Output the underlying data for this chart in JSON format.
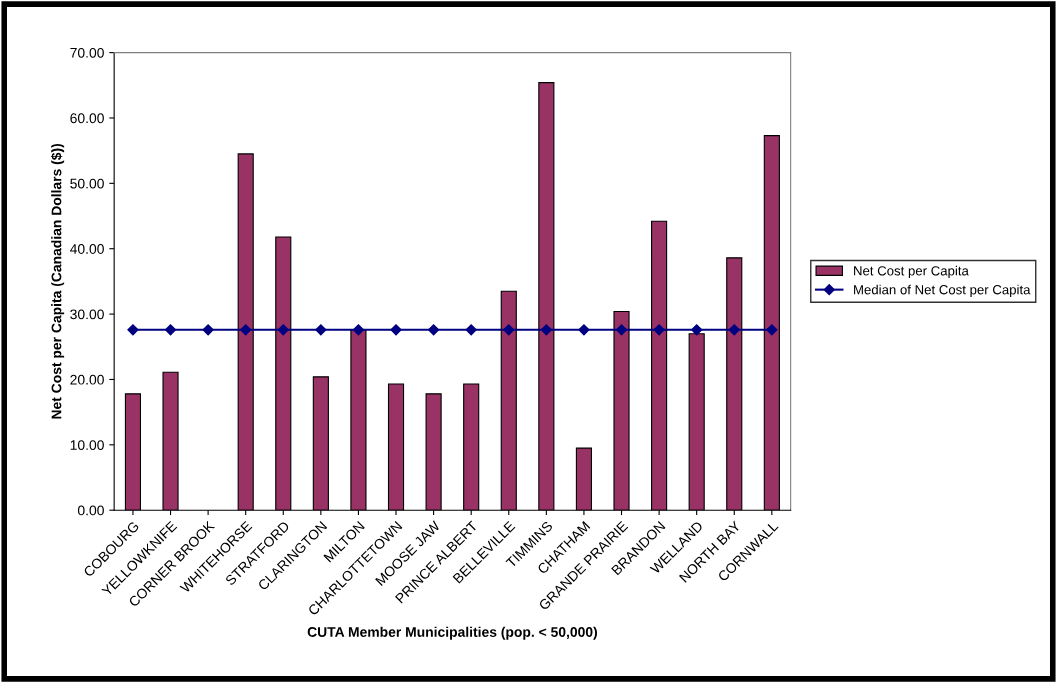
{
  "chart_data": {
    "type": "bar",
    "xlabel": "CUTA Member Municipalities (pop. < 50,000)",
    "ylabel": "Net Cost per Capita (Canadian Dollars ($))",
    "categories": [
      "COBOURG",
      "YELLOWKNIFE",
      "CORNER BROOK",
      "WHITEHORSE",
      "STRATFORD",
      "CLARINGTON",
      "MILTON",
      "CHARLOTTETOWN",
      "MOOSE JAW",
      "PRINCE ALBERT",
      "BELLEVILLE",
      "TIMMINS",
      "CHATHAM",
      "GRANDE PRAIRIE",
      "BRANDON",
      "WELLAND",
      "NORTH BAY",
      "CORNWALL"
    ],
    "series": [
      {
        "name": "Net Cost per Capita",
        "color": "#993366",
        "values": [
          17.8,
          21.1,
          null,
          54.5,
          41.8,
          20.4,
          27.6,
          19.3,
          17.8,
          19.3,
          33.5,
          65.4,
          9.5,
          30.4,
          44.2,
          27.0,
          38.6,
          57.3
        ]
      },
      {
        "name": "Median of Net Cost per Capita",
        "type": "line",
        "color": "#000080",
        "marker": "diamond",
        "values": [
          27.6,
          27.6,
          27.6,
          27.6,
          27.6,
          27.6,
          27.6,
          27.6,
          27.6,
          27.6,
          27.6,
          27.6,
          27.6,
          27.6,
          27.6,
          27.6,
          27.6,
          27.6
        ]
      }
    ],
    "ylim": [
      0,
      70
    ],
    "yticks": [
      {
        "value": 0,
        "label": "0.00"
      },
      {
        "value": 10,
        "label": "10.00"
      },
      {
        "value": 20,
        "label": "20.00"
      },
      {
        "value": 30,
        "label": "30.00"
      },
      {
        "value": 40,
        "label": "40.00"
      },
      {
        "value": 50,
        "label": "50.00"
      },
      {
        "value": 60,
        "label": "60.00"
      },
      {
        "value": 70,
        "label": "70.00"
      }
    ],
    "grid": false,
    "legend": "right"
  }
}
